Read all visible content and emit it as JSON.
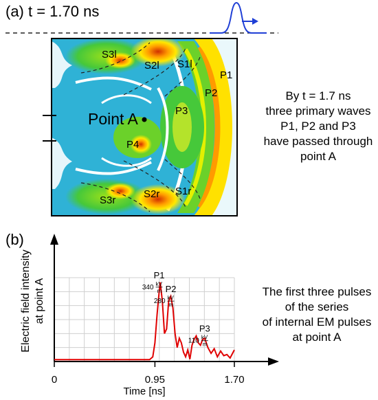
{
  "panel_a": {
    "label": "(a) t = 1.70 ns",
    "region_labels": [
      "S3l",
      "S2l",
      "S1l",
      "P1",
      "P2",
      "P3",
      "P4",
      "S3r",
      "S2r",
      "S1r"
    ],
    "point_label": "Point A",
    "note": [
      "By t = 1.7 ns",
      "three primary waves",
      "P1, P2 and P3",
      "have passed through",
      "point A"
    ],
    "colors": {
      "pulse": "#1f3fd6",
      "arrow": "#1f3fd6"
    }
  },
  "panel_b": {
    "label": "(b)",
    "note": [
      "The first three pulses",
      "of the series",
      "of internal EM pulses",
      "at point A"
    ],
    "colors": {
      "curve": "#e00000",
      "grid": "#cfcfcf"
    },
    "chart_data": {
      "type": "line",
      "title": "",
      "xlabel": "Time [ns]",
      "ylabel": "Electric field intensity at point A",
      "ylabel_lines": [
        "Electric field intensity",
        "at point A"
      ],
      "x_ticks": [
        "0",
        "0.95",
        "1.70"
      ],
      "xlim": [
        0,
        1.7
      ],
      "ylim": [
        0,
        360
      ],
      "grid": true,
      "series": [
        {
          "x": [
            0,
            0.9,
            0.93,
            0.95,
            0.97,
            0.99,
            1.0,
            1.02,
            1.04,
            1.06,
            1.08,
            1.1,
            1.12,
            1.14,
            1.16,
            1.18,
            1.2,
            1.22,
            1.24,
            1.26,
            1.28,
            1.3,
            1.32,
            1.34,
            1.36,
            1.38,
            1.4,
            1.42,
            1.45,
            1.48,
            1.51,
            1.54,
            1.57,
            1.6,
            1.63,
            1.66,
            1.7
          ],
          "y": [
            8,
            8,
            20,
            80,
            200,
            300,
            340,
            260,
            120,
            140,
            260,
            280,
            230,
            120,
            60,
            100,
            80,
            40,
            20,
            50,
            10,
            70,
            95,
            110,
            80,
            70,
            95,
            100,
            60,
            35,
            55,
            20,
            45,
            25,
            30,
            15,
            50
          ]
        }
      ],
      "annotations": [
        {
          "peak": "P1",
          "value": "340",
          "unit_top": "kV",
          "unit_bottom": "m"
        },
        {
          "peak": "P2",
          "value": "280",
          "unit_top": "kV",
          "unit_bottom": "m"
        },
        {
          "peak": "P3",
          "value": "110",
          "unit_top": "kV",
          "unit_bottom": "m"
        }
      ]
    }
  }
}
